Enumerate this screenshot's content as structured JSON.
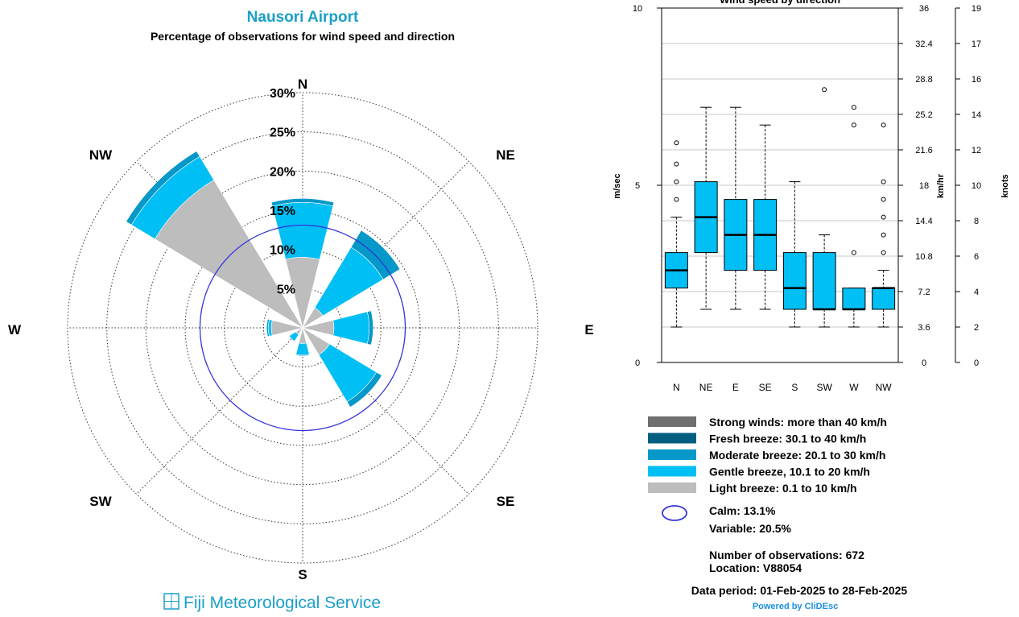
{
  "colors": {
    "strong": "#6f6f6f",
    "fresh": "#005f7e",
    "moderate": "#0598c9",
    "gentle": "#00bff5",
    "light": "#bdbdbd",
    "calm": "#3333dd",
    "title": "#1aa0c8"
  },
  "rose": {
    "title": "Nausori Airport",
    "subtitle": "Percentage of observations for wind speed and direction",
    "directions": [
      "N",
      "NE",
      "E",
      "SE",
      "S",
      "SW",
      "W",
      "NW"
    ],
    "ring_labels": [
      "5%",
      "10%",
      "15%",
      "20%",
      "25%",
      "30%"
    ],
    "footer": "Fiji Meteorological Service",
    "logo_icon": "fms-logo-icon"
  },
  "chart_data": [
    {
      "type": "rose",
      "directions": [
        "N",
        "NE",
        "E",
        "SE",
        "S",
        "SW",
        "W",
        "NW"
      ],
      "rmax": 30,
      "calm_percent": 13.1,
      "series": [
        {
          "name": "Light breeze: 0.1 to 10 km/h",
          "values": [
            9.0,
            3.0,
            4.0,
            4.0,
            2.0,
            1.0,
            4.0,
            22.0
          ]
        },
        {
          "name": "Gentle breeze, 10.1 to 20 km/h",
          "values": [
            7.0,
            9.0,
            4.5,
            7.0,
            1.5,
            1.0,
            0.4,
            3.5
          ]
        },
        {
          "name": "Moderate breeze: 20.1 to 30 km/h",
          "values": [
            0.5,
            2.5,
            0.5,
            0.8,
            0.1,
            0.0,
            0.2,
            0.8
          ]
        },
        {
          "name": "Fresh breeze: 30.1 to 40 km/h",
          "values": [
            0,
            0,
            0,
            0,
            0,
            0,
            0,
            0
          ]
        },
        {
          "name": "Strong winds: more than 40 km/h",
          "values": [
            0,
            0,
            0,
            0,
            0,
            0,
            0,
            0
          ]
        }
      ]
    },
    {
      "type": "boxplot",
      "title": "Wind speed by direction",
      "categories": [
        "N",
        "NE",
        "E",
        "SE",
        "S",
        "SW",
        "W",
        "NW"
      ],
      "ylabel": "m/sec",
      "ylabel_right1": "km/hr",
      "ylabel_right2": "knots",
      "ylim": [
        0,
        10
      ],
      "yticks": [
        0,
        5,
        10
      ],
      "kmh_ticks": [
        "0",
        "3.6",
        "7.2",
        "10.8",
        "14.4",
        "18",
        "21.6",
        "25.2",
        "28.8",
        "32.4",
        "36"
      ],
      "knots_ticks": [
        "0",
        "2",
        "4",
        "6",
        "8",
        "10",
        "12",
        "14",
        "16",
        "17",
        "19"
      ],
      "boxes": [
        {
          "whisker_low": 1.0,
          "q1": 2.1,
          "median": 2.6,
          "q3": 3.1,
          "whisker_high": 4.1,
          "outliers": [
            4.6,
            5.1,
            5.6,
            6.2
          ]
        },
        {
          "whisker_low": 1.5,
          "q1": 3.1,
          "median": 4.1,
          "q3": 5.1,
          "whisker_high": 7.2,
          "outliers": []
        },
        {
          "whisker_low": 1.5,
          "q1": 2.6,
          "median": 3.6,
          "q3": 4.6,
          "whisker_high": 7.2,
          "outliers": []
        },
        {
          "whisker_low": 1.5,
          "q1": 2.6,
          "median": 3.6,
          "q3": 4.6,
          "whisker_high": 6.7,
          "outliers": []
        },
        {
          "whisker_low": 1.0,
          "q1": 1.5,
          "median": 2.1,
          "q3": 3.1,
          "whisker_high": 5.1,
          "outliers": []
        },
        {
          "whisker_low": 1.0,
          "q1": 1.5,
          "median": 1.5,
          "q3": 3.1,
          "whisker_high": 3.6,
          "outliers": [
            7.7
          ]
        },
        {
          "whisker_low": 1.0,
          "q1": 1.5,
          "median": 1.5,
          "q3": 2.1,
          "whisker_high": 2.1,
          "outliers": [
            3.1,
            6.7,
            7.2
          ]
        },
        {
          "whisker_low": 1.0,
          "q1": 1.5,
          "median": 2.1,
          "q3": 2.1,
          "whisker_high": 2.6,
          "outliers": [
            3.1,
            3.6,
            4.1,
            4.6,
            5.1,
            6.7
          ]
        }
      ]
    }
  ],
  "legend": {
    "items": [
      {
        "label": "Strong winds: more than 40 km/h",
        "color": "#6f6f6f"
      },
      {
        "label": "Fresh breeze: 30.1 to 40 km/h",
        "color": "#005f7e"
      },
      {
        "label": "Moderate breeze: 20.1 to 30 km/h",
        "color": "#0598c9"
      },
      {
        "label": "Gentle breeze, 10.1 to 20 km/h",
        "color": "#00bff5"
      },
      {
        "label": "Light breeze: 0.1 to 10 km/h",
        "color": "#bdbdbd"
      }
    ],
    "calm": "Calm: 13.1%",
    "variable": "Variable: 20.5%",
    "observations": "Number of observations:  672",
    "location": "Location:  V88054",
    "period": "Data period: 01-Feb-2025 to 28-Feb-2025",
    "powered": "Powered by CliDEsc"
  }
}
